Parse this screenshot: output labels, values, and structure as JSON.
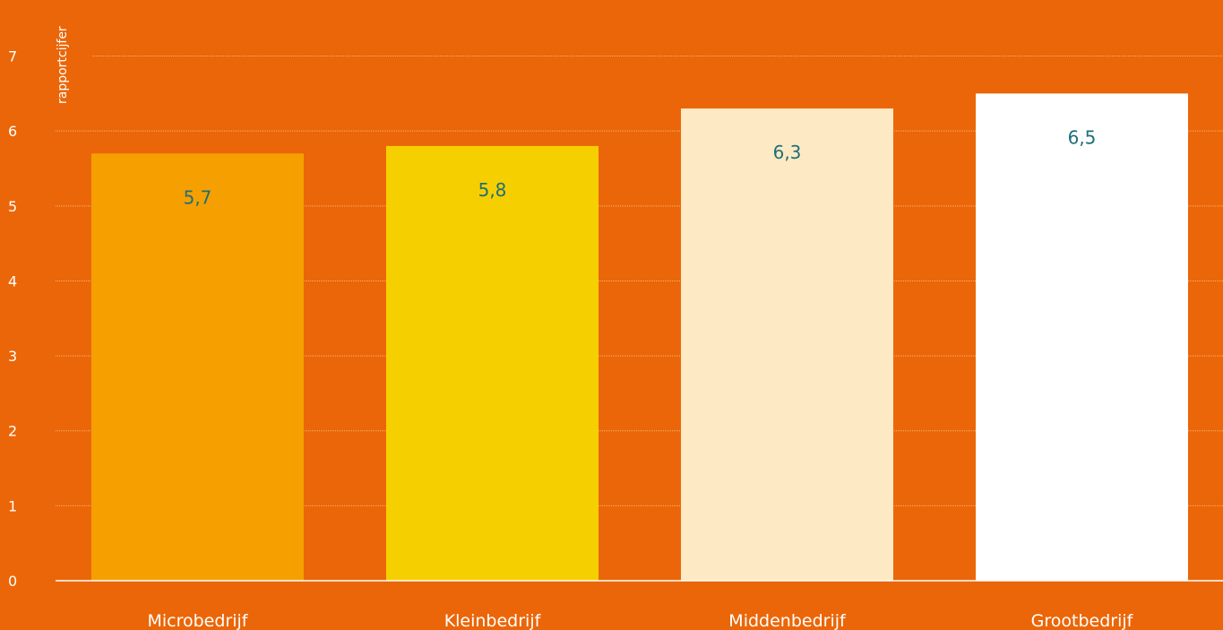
{
  "chart_data": {
    "type": "bar",
    "categories": [
      "Microbedrijf",
      "Kleinbedrijf",
      "Middenbedrijf",
      "Grootbedrijf"
    ],
    "values": [
      5.7,
      5.8,
      6.3,
      6.5
    ],
    "value_labels": [
      "5,7",
      "5,8",
      "6,3",
      "6,5"
    ],
    "bar_colors": [
      "#F5A000",
      "#F6CF00",
      "#FDEAC4",
      "#FFFFFF"
    ],
    "ylabel": "rapportcijfer",
    "xlabel": "",
    "title": "",
    "ylim": [
      0,
      7
    ],
    "yticks": [
      0,
      1,
      2,
      3,
      4,
      5,
      6,
      7
    ],
    "grid": true,
    "legend": "none"
  },
  "colors": {
    "background": "#EB6608",
    "grid": "#F6B27A",
    "axis": "#FFFFFF",
    "tick_text": "#FFFFFF",
    "value_text": "#1F6F78"
  }
}
